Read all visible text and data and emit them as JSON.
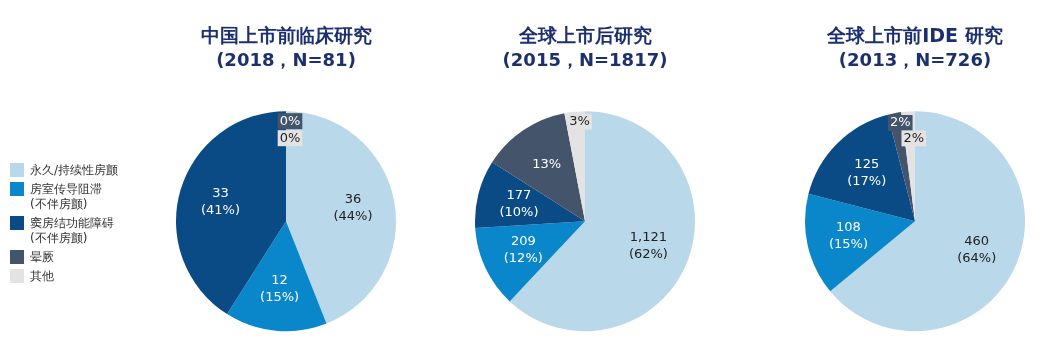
{
  "chart_data": [
    {
      "type": "pie",
      "title": "中国上市前临床研究",
      "subtitle": "(2018，N=81)",
      "categories": [
        "永久/持续性房颤",
        "房室传导阻滞\n(不伴房颤)",
        "窦房结功能障碍\n(不伴房颤)",
        "晕厥",
        "其他"
      ],
      "values": [
        44,
        15,
        41,
        0,
        0
      ],
      "colors": [
        "#b9d8ea",
        "#0a87cb",
        "#0a4a85",
        "#44546a",
        "#e3e3e3"
      ],
      "value_labels": [
        "36\n(44%)",
        "12\n(15%)",
        "33\n(41%)",
        "0%",
        "0%"
      ],
      "legend": "left"
    },
    {
      "type": "pie",
      "title": "全球上市后研究",
      "subtitle": "(2015，N=1817)",
      "categories": [
        null,
        null,
        null,
        null,
        null
      ],
      "values": [
        62,
        12,
        10,
        13,
        3
      ],
      "colors": [
        "#b9d8ea",
        "#0a87cb",
        "#0a4a85",
        "#44546a",
        "#e3e3e3"
      ],
      "value_labels": [
        "1,121\n(62%)",
        "209\n(12%)",
        "177\n(10%)",
        "13%",
        "3%"
      ]
    },
    {
      "type": "pie",
      "title": "全球上市前IDE 研究",
      "subtitle": "(2013，N=726)",
      "categories": [
        null,
        null,
        null,
        null,
        null
      ],
      "values": [
        64,
        15,
        17,
        2,
        2
      ],
      "colors": [
        "#b9d8ea",
        "#0a87cb",
        "#0a4a85",
        "#44546a",
        "#e3e3e3"
      ],
      "value_labels": [
        "460\n(64%)",
        "108\n(15%)",
        "125\n(17%)",
        "2%",
        "2%"
      ]
    }
  ]
}
